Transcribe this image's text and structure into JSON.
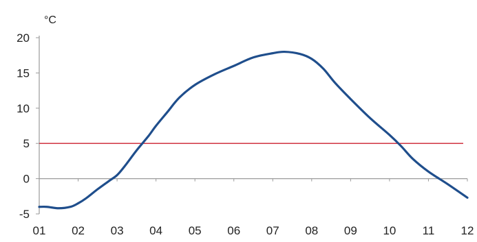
{
  "chart_data": {
    "type": "line",
    "title": "",
    "xlabel": "",
    "ylabel": "°C",
    "ylim": [
      -5,
      20
    ],
    "y_ticks": [
      "20",
      "15",
      "10",
      "5",
      "0",
      "-5"
    ],
    "x_ticks": [
      "01",
      "02",
      "03",
      "04",
      "05",
      "06",
      "07",
      "08",
      "09",
      "10",
      "11",
      "12"
    ],
    "grid": false,
    "legend": "none",
    "series": [
      {
        "color": "#1f4e8c",
        "points": [
          [
            1.0,
            -4.0
          ],
          [
            1.2,
            -4.0
          ],
          [
            1.5,
            -4.2
          ],
          [
            1.8,
            -4.0
          ],
          [
            2.0,
            -3.5
          ],
          [
            2.2,
            -2.8
          ],
          [
            2.5,
            -1.5
          ],
          [
            2.8,
            -0.3
          ],
          [
            3.0,
            0.5
          ],
          [
            3.2,
            1.8
          ],
          [
            3.5,
            4.0
          ],
          [
            3.8,
            6.0
          ],
          [
            4.0,
            7.5
          ],
          [
            4.3,
            9.5
          ],
          [
            4.6,
            11.5
          ],
          [
            5.0,
            13.3
          ],
          [
            5.5,
            14.8
          ],
          [
            6.0,
            16.0
          ],
          [
            6.5,
            17.2
          ],
          [
            7.0,
            17.8
          ],
          [
            7.3,
            18.0
          ],
          [
            7.7,
            17.7
          ],
          [
            8.0,
            17.0
          ],
          [
            8.3,
            15.6
          ],
          [
            8.6,
            13.6
          ],
          [
            9.0,
            11.3
          ],
          [
            9.5,
            8.6
          ],
          [
            10.0,
            6.2
          ],
          [
            10.3,
            4.6
          ],
          [
            10.6,
            2.8
          ],
          [
            11.0,
            1.0
          ],
          [
            11.5,
            -0.8
          ],
          [
            12.0,
            -2.7
          ]
        ]
      }
    ],
    "reference_lines": [
      {
        "y": 5,
        "color": "#cc1f2e"
      }
    ]
  }
}
